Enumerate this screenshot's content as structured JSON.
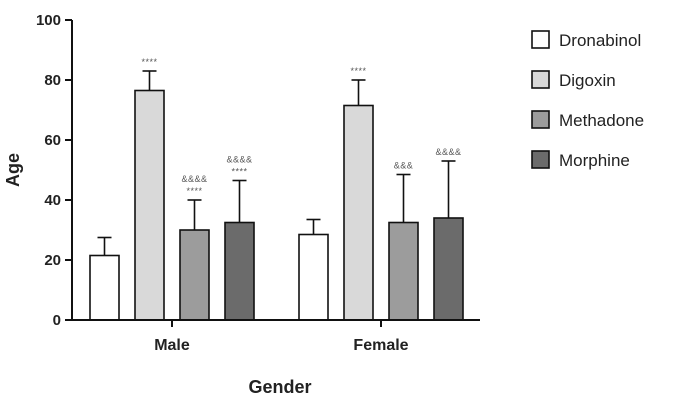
{
  "chart_data": {
    "type": "bar",
    "title": "",
    "xlabel": "Gender",
    "ylabel": "Age",
    "ylim": [
      0,
      100
    ],
    "yticks": [
      0,
      20,
      40,
      60,
      80,
      100
    ],
    "categories": [
      "Male",
      "Female"
    ],
    "legend_position": "right",
    "series": [
      {
        "name": "Dronabinol",
        "color": "#ffffff",
        "values": [
          21.5,
          28.5
        ],
        "errors": [
          6,
          5
        ],
        "annotations": [
          "",
          ""
        ]
      },
      {
        "name": "Digoxin",
        "color": "#d9d9d9",
        "values": [
          76.5,
          71.5
        ],
        "errors": [
          6.5,
          8.5
        ],
        "annotations": [
          "****",
          "****"
        ]
      },
      {
        "name": "Methadone",
        "color": "#9c9c9c",
        "values": [
          30,
          32.5
        ],
        "errors": [
          10,
          16
        ],
        "annotations": [
          "&&&&\n****",
          "&&&"
        ]
      },
      {
        "name": "Morphine",
        "color": "#6b6b6b",
        "values": [
          32.5,
          34
        ],
        "errors": [
          14,
          19
        ],
        "annotations": [
          "&&&&\n****",
          "&&&&"
        ]
      }
    ]
  }
}
